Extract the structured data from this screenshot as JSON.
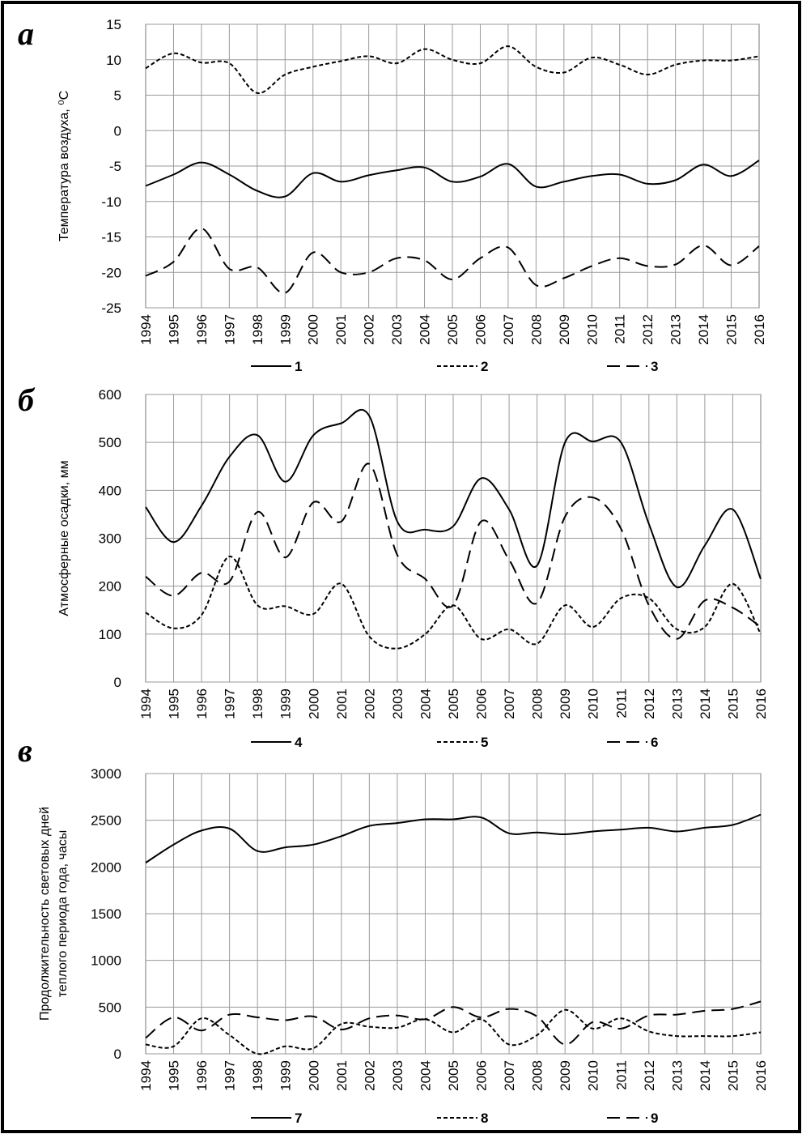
{
  "chart_data": [
    {
      "type": "line",
      "panel_label": "а",
      "ylabel": "Температура воздуха, ⁰С",
      "xlabel": "",
      "ylim": [
        -25,
        15
      ],
      "yticks": [
        15,
        10,
        5,
        0,
        -5,
        -10,
        -15,
        -20,
        -25
      ],
      "grid": true,
      "legend_position": "bottom",
      "categories": [
        "1994",
        "1995",
        "1996",
        "1997",
        "1998",
        "1999",
        "2000",
        "2001",
        "2002",
        "2003",
        "2004",
        "2005",
        "2006",
        "2007",
        "2008",
        "2009",
        "2010",
        "2011",
        "2012",
        "2013",
        "2014",
        "2015",
        "2016"
      ],
      "series": [
        {
          "name": "1",
          "style": "solid",
          "values": [
            -7.8,
            -6.2,
            -4.5,
            -6.2,
            -8.5,
            -9.3,
            -6.0,
            -7.2,
            -6.3,
            -5.6,
            -5.2,
            -7.2,
            -6.5,
            -4.7,
            -7.9,
            -7.2,
            -6.4,
            -6.2,
            -7.5,
            -7.0,
            -4.8,
            -6.4,
            -4.2
          ]
        },
        {
          "name": "2",
          "style": "dotted",
          "values": [
            8.8,
            10.9,
            9.6,
            9.5,
            5.3,
            7.9,
            9.0,
            9.8,
            10.5,
            9.5,
            11.5,
            10.0,
            9.5,
            11.9,
            9.0,
            8.2,
            10.3,
            9.3,
            7.9,
            9.3,
            9.9,
            9.9,
            10.5
          ]
        },
        {
          "name": "3",
          "style": "dashed",
          "values": [
            -20.5,
            -18.5,
            -13.8,
            -19.5,
            -19.3,
            -22.9,
            -17.2,
            -20.0,
            -20.0,
            -18.0,
            -18.3,
            -21.0,
            -18.0,
            -16.5,
            -21.8,
            -20.8,
            -19.1,
            -18.0,
            -19.1,
            -18.9,
            -16.2,
            -19.0,
            -16.3
          ]
        }
      ]
    },
    {
      "type": "line",
      "panel_label": "б",
      "ylabel": "Атмосферные осадки, мм",
      "xlabel": "",
      "ylim": [
        0,
        600
      ],
      "yticks": [
        600,
        500,
        400,
        300,
        200,
        100,
        0
      ],
      "grid": true,
      "legend_position": "bottom",
      "categories": [
        "1994",
        "1995",
        "1996",
        "1997",
        "1998",
        "1999",
        "2000",
        "2001",
        "2002",
        "2003",
        "2004",
        "2005",
        "2006",
        "2007",
        "2008",
        "2009",
        "2010",
        "2011",
        "2012",
        "2013",
        "2014",
        "2015",
        "2016"
      ],
      "series": [
        {
          "name": "4",
          "style": "solid",
          "values": [
            365,
            292,
            368,
            470,
            515,
            418,
            515,
            540,
            555,
            335,
            318,
            325,
            425,
            360,
            243,
            500,
            502,
            500,
            330,
            198,
            285,
            360,
            215
          ]
        },
        {
          "name": "5",
          "style": "dotted",
          "values": [
            145,
            112,
            140,
            262,
            160,
            158,
            142,
            205,
            95,
            70,
            100,
            160,
            90,
            110,
            80,
            160,
            115,
            175,
            175,
            110,
            115,
            205,
            100
          ]
        },
        {
          "name": "6",
          "style": "dashed",
          "values": [
            220,
            180,
            228,
            210,
            355,
            260,
            375,
            335,
            455,
            265,
            215,
            160,
            335,
            255,
            165,
            345,
            385,
            320,
            160,
            90,
            170,
            155,
            115
          ]
        }
      ]
    },
    {
      "type": "line",
      "panel_label": "в",
      "ylabel": "Продолжительность световых дней теплого периода года, часы",
      "ylabel_lines": [
        "Продолжительность световых дней",
        "теплого периода года, часы"
      ],
      "xlabel": "",
      "ylim": [
        0,
        3000
      ],
      "yticks": [
        3000,
        2500,
        2000,
        1500,
        1000,
        500,
        0
      ],
      "grid": true,
      "legend_position": "bottom",
      "categories": [
        "1994",
        "1995",
        "1996",
        "1997",
        "1998",
        "1999",
        "2000",
        "2001",
        "2002",
        "2003",
        "2004",
        "2005",
        "2006",
        "2007",
        "2008",
        "2009",
        "2010",
        "2011",
        "2012",
        "2013",
        "2014",
        "2015",
        "2016"
      ],
      "series": [
        {
          "name": "7",
          "style": "solid",
          "values": [
            2045,
            2240,
            2390,
            2410,
            2170,
            2210,
            2240,
            2330,
            2440,
            2470,
            2510,
            2510,
            2530,
            2360,
            2370,
            2350,
            2380,
            2400,
            2420,
            2380,
            2420,
            2450,
            2560
          ]
        },
        {
          "name": "8",
          "style": "dotted",
          "values": [
            100,
            80,
            380,
            200,
            0,
            80,
            60,
            320,
            290,
            280,
            370,
            230,
            370,
            100,
            200,
            470,
            270,
            380,
            240,
            190,
            190,
            190,
            230
          ]
        },
        {
          "name": "9",
          "style": "dashed",
          "values": [
            170,
            390,
            250,
            420,
            390,
            360,
            400,
            260,
            380,
            410,
            370,
            500,
            390,
            480,
            400,
            100,
            340,
            270,
            410,
            420,
            460,
            480,
            560
          ]
        }
      ]
    }
  ]
}
